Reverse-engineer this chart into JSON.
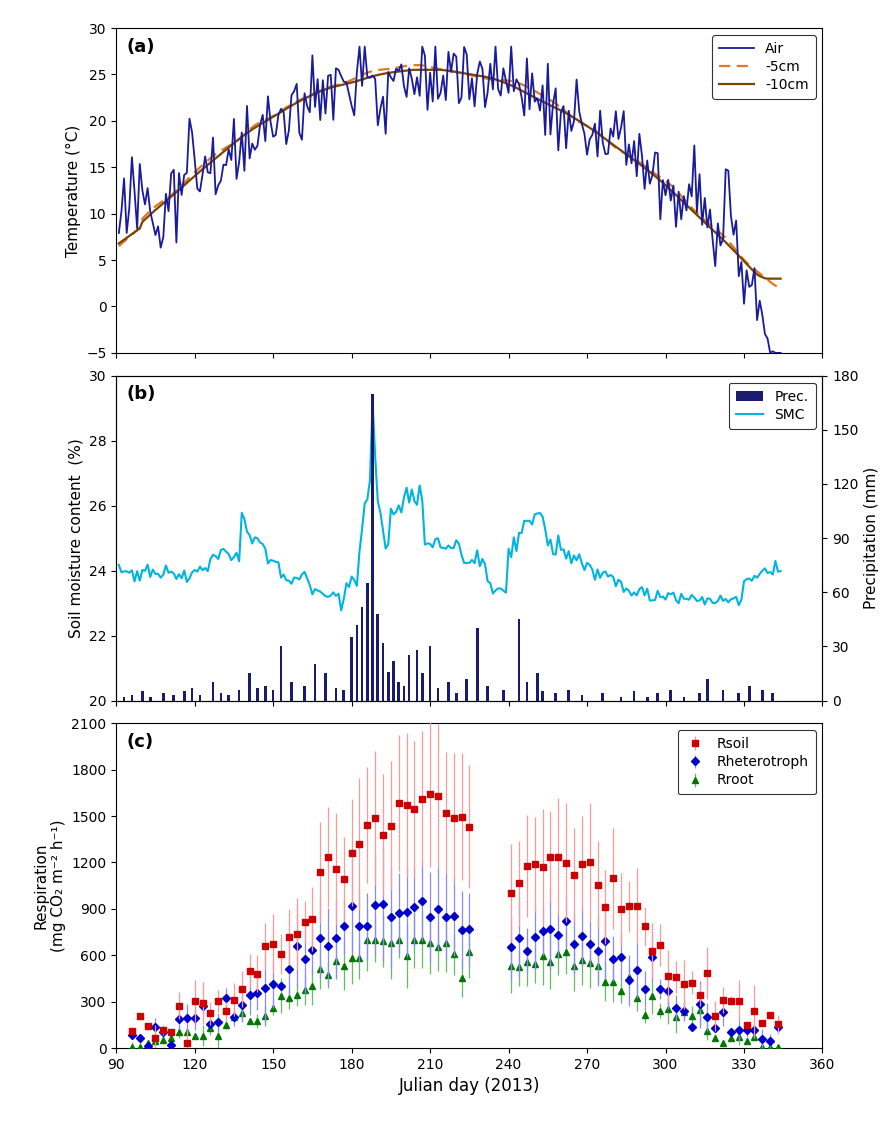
{
  "panel_a": {
    "title": "(a)",
    "ylabel": "Temperature (°C)",
    "ylim": [
      -5,
      30
    ],
    "yticks": [
      -5,
      0,
      5,
      10,
      15,
      20,
      25,
      30
    ],
    "legend_labels": [
      "Air",
      "-5cm",
      "-10cm"
    ],
    "legend_colors": [
      "#1a1a9c",
      "#e07820",
      "#7a4500"
    ],
    "line_styles": [
      "solid",
      "dashed",
      "solid"
    ]
  },
  "panel_b": {
    "title": "(b)",
    "ylabel": "Soil moisture content  (%)",
    "ylabel2": "Precipitation (mm)",
    "ylim": [
      20,
      30
    ],
    "yticks": [
      20,
      22,
      24,
      26,
      28,
      30
    ],
    "ylim2": [
      0,
      180
    ],
    "yticks2": [
      0,
      30,
      60,
      90,
      120,
      150,
      180
    ],
    "bar_color": "#1a1a6e",
    "smc_color": "#00b4e0"
  },
  "panel_c": {
    "title": "(c)",
    "ylabel": "Respiration\n(mg CO₂ m⁻² h⁻¹)",
    "ylim": [
      0,
      2100
    ],
    "yticks": [
      0,
      300,
      600,
      900,
      1200,
      1500,
      1800,
      2100
    ],
    "rsoil_color": "#cc0000",
    "rsoil_ecolor": "#ff9999",
    "rh_color": "#0000cc",
    "rh_ecolor": "#8888ff",
    "rroot_color": "#007700",
    "rroot_ecolor": "#66bb66"
  },
  "xlabel": "Julian day (2013)",
  "xlim": [
    90,
    360
  ],
  "xticks": [
    90,
    120,
    150,
    180,
    210,
    240,
    270,
    300,
    330,
    360
  ]
}
